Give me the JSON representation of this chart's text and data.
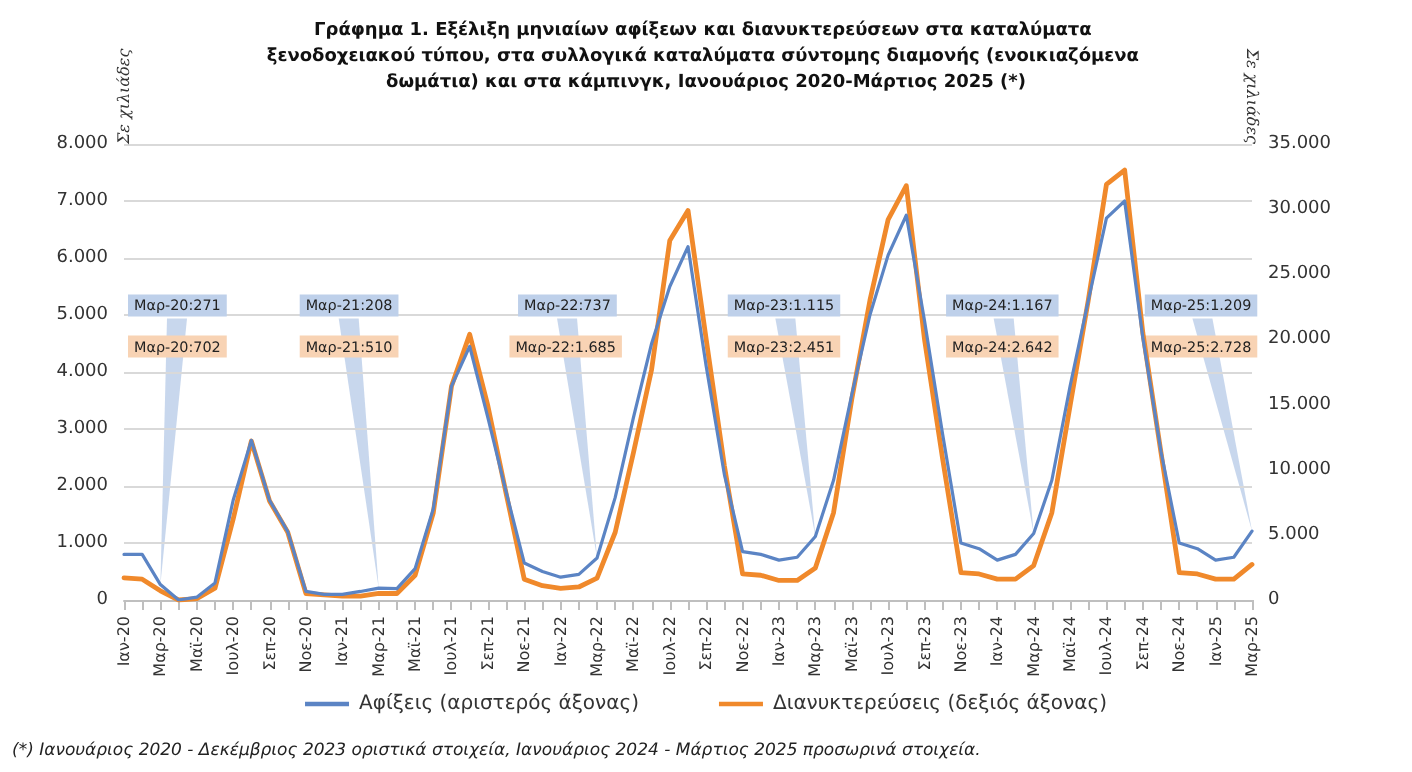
{
  "chart_data": {
    "type": "line",
    "title": "Γράφημα 1. Εξέλιξη μηνιαίων αφίξεων και διανυκτερεύσεων στα καταλύματα ξενοδοχειακού τύπου, στα συλλογικά καταλύματα σύντομης διαμονής (ενοικιαζόμενα δωμάτια) και στα κάμπινγκ, Ιανουάριος 2020-Μάρτιος 2025 (*)",
    "ylabel": "Σε χιλιάδες",
    "y2label": "Σε χιλιάδες",
    "categories": [
      "Ιαν-20",
      null,
      "Μαρ-20",
      null,
      "Μαϊ-20",
      null,
      "Ιουλ-20",
      null,
      "Σεπ-20",
      null,
      "Νοε-20",
      null,
      "Ιαν-21",
      null,
      "Μαρ-21",
      null,
      "Μαϊ-21",
      null,
      "Ιουλ-21",
      null,
      "Σεπ-21",
      null,
      "Νοε-21",
      null,
      "Ιαν-22",
      null,
      "Μαρ-22",
      null,
      "Μαϊ-22",
      null,
      "Ιουλ-22",
      null,
      "Σεπ-22",
      null,
      "Νοε-22",
      null,
      "Ιαν-23",
      null,
      "Μαρ-23",
      null,
      "Μαϊ-23",
      null,
      "Ιουλ-23",
      null,
      "Σεπ-23",
      null,
      "Νοε-23",
      null,
      "Ιαν-24",
      null,
      "Μαρ-24",
      null,
      "Μαϊ-24",
      null,
      "Ιουλ-24",
      null,
      "Σεπ-24",
      null,
      "Νοε-24",
      null,
      "Ιαν-25",
      null,
      "Μαρ-25"
    ],
    "series": [
      {
        "name": "Αφίξεις (αριστερός άξονας)",
        "color": "#5b84c4",
        "values": [
          800,
          800,
          271,
          0,
          50,
          300,
          1750,
          2800,
          1750,
          1200,
          150,
          100,
          100,
          150,
          208,
          200,
          550,
          1600,
          3750,
          4450,
          3200,
          1900,
          650,
          500,
          400,
          450,
          737,
          1800,
          3200,
          4500,
          5500,
          6200,
          4100,
          2200,
          850,
          800,
          700,
          750,
          1115,
          2100,
          3600,
          5000,
          6050,
          6750,
          4900,
          2900,
          1000,
          900,
          700,
          800,
          1167,
          2100,
          3750,
          5250,
          6700,
          7000,
          4600,
          2600,
          1000,
          900,
          700,
          750,
          1209
        ]
      },
      {
        "name": "Διανυκτερεύσεις (δεξιός άξονας)",
        "color": "#f0892b",
        "axis": "y2",
        "values": [
          1700,
          1600,
          702,
          0,
          100,
          900,
          6200,
          12200,
          7600,
          5200,
          500,
          400,
          300,
          300,
          510,
          500,
          1900,
          6700,
          16400,
          20400,
          14900,
          8200,
          1600,
          1100,
          900,
          1000,
          1685,
          5200,
          11300,
          17700,
          27600,
          29900,
          20000,
          10300,
          2000,
          1900,
          1500,
          1500,
          2451,
          6700,
          15400,
          23000,
          29200,
          31800,
          20000,
          10800,
          2100,
          2000,
          1600,
          1600,
          2642,
          6700,
          14900,
          23000,
          31900,
          33000,
          20500,
          11300,
          2100,
          2000,
          1600,
          1600,
          2728
        ]
      }
    ],
    "ylim": [
      0,
      8000
    ],
    "yticks": [
      {
        "value": 0,
        "label": "0"
      },
      {
        "value": 1000,
        "label": "1.000"
      },
      {
        "value": 2000,
        "label": "2.000"
      },
      {
        "value": 3000,
        "label": "3.000"
      },
      {
        "value": 4000,
        "label": "4.000"
      },
      {
        "value": 5000,
        "label": "5.000"
      },
      {
        "value": 6000,
        "label": "6.000"
      },
      {
        "value": 7000,
        "label": "7.000"
      },
      {
        "value": 8000,
        "label": "8.000"
      }
    ],
    "y2lim": [
      0,
      35000
    ],
    "y2ticks": [
      {
        "value": 0,
        "label": "0"
      },
      {
        "value": 5000,
        "label": "5.000"
      },
      {
        "value": 10000,
        "label": "10.000"
      },
      {
        "value": 15000,
        "label": "15.000"
      },
      {
        "value": 20000,
        "label": "20.000"
      },
      {
        "value": 25000,
        "label": "25.000"
      },
      {
        "value": 30000,
        "label": "30.000"
      },
      {
        "value": 35000,
        "label": "35.000"
      }
    ],
    "grid": "y",
    "legend": "bottom",
    "marker": "none",
    "line_style": "solid",
    "annotations": [
      "(*) Ιανουάριος 2020 - Δεκέμβριος 2023 οριστικά στοιχεία, Ιανουάριος 2024 - Μάρτιος 2025 προσωρινά στοιχεία.",
      {
        "text": "Μαρ-20:271",
        "x": "Μαρ-20",
        "y": 271
      },
      "Μαρ-20:702",
      {
        "text": "Μαρ-21:208",
        "x": "Μαρ-21",
        "y": 208
      },
      "Μαρ-21:510",
      {
        "text": "Μαρ-22:737",
        "x": "Μαρ-22",
        "y": 737
      },
      "Μαρ-22:1.685",
      {
        "text": "Μαρ-23:1.115",
        "x": "Μαρ-23",
        "y": 1115
      },
      "Μαρ-23:2.451",
      {
        "text": "Μαρ-24:1.167",
        "x": "Μαρ-24",
        "y": 1167
      },
      "Μαρ-24:2.642",
      {
        "text": "Μαρ-25:1.209",
        "x": "Μαρ-25",
        "y": 1209
      },
      "Μαρ-25:2.728"
    ]
  }
}
